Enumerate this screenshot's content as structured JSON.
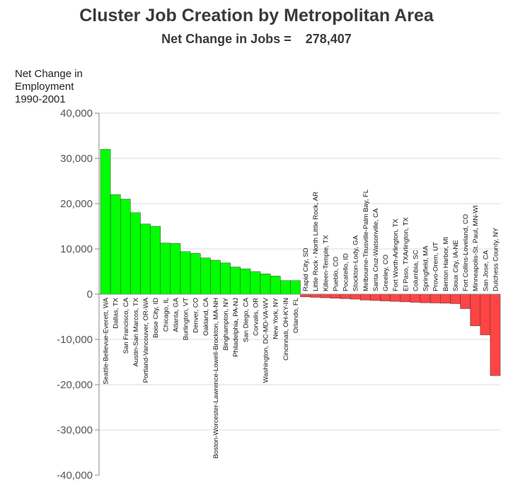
{
  "chart_data": {
    "type": "bar",
    "title": "Cluster Job Creation by Metropolitan Area",
    "subtitle_label": "Net Change in Jobs =",
    "subtitle_value": "278,407",
    "ylabel_lines": [
      "Net Change in",
      "Employment",
      "1990-2001"
    ],
    "xlabel": "",
    "ylim": [
      -40000,
      40000
    ],
    "yticks": [
      {
        "value": 40000,
        "label": "40,000"
      },
      {
        "value": 30000,
        "label": "30,000"
      },
      {
        "value": 20000,
        "label": "20,000"
      },
      {
        "value": 10000,
        "label": "10,000"
      },
      {
        "value": 0,
        "label": "0"
      },
      {
        "value": -10000,
        "label": "-10,000"
      },
      {
        "value": -20000,
        "label": "-20,000"
      },
      {
        "value": -30000,
        "label": "-30,000"
      },
      {
        "value": -40000,
        "label": "-40,000"
      }
    ],
    "grid": true,
    "positive_color": "#00ff00",
    "negative_color": "#ff4444",
    "categories": [
      "Seattle-Bellevue-Everett, WA",
      "Dallas, TX",
      "San Francisco, CA",
      "Austin-San Marcos, TX",
      "Portland-Vancouver, OR-WA",
      "Boise City, ID",
      "Chicago, IL",
      "Atlanta, GA",
      "Burlington, VT",
      "Denver, CO",
      "Oakland, CA",
      "Boston-Worcester-Lawrence-Lowell-Brockton, MA-NH",
      "Binghampton, NY",
      "Philadelphia, PA-NJ",
      "San Diego, CA",
      "Corvalis, OR",
      "Washington, DC-MD-VA-WV",
      "New York, NY",
      "Cincinnati, OH-KY-IN",
      "Orlando, FL",
      "Rapid City, SD",
      "Little Rock - North Little Rock, AR",
      "Killeen-Temple, TX",
      "Pueblo, CO",
      "Pocatello, ID",
      "Stockton-Lody, GA",
      "Melbourne-Titusville-Palm Bay, FL",
      "Santa Cruz-Watsonville, CA",
      "Greeley, CO",
      "Fort Worth-Arlington, TX",
      "El Paso, TXArlington, TX",
      "Columbia, SC",
      "Springfield, MA",
      "Provo-Orem, UT",
      "Benton Harbor, MI",
      "Sioux City, IA-NE",
      "Fort Collins-Loveland, CO",
      "Minneapolis-St. Paul, MN-WI",
      "San Jose, CA",
      "Dutchess County, NY"
    ],
    "values": [
      32000,
      22000,
      21000,
      18000,
      15500,
      15000,
      11300,
      11200,
      9400,
      9000,
      8000,
      7500,
      6900,
      6000,
      5600,
      5000,
      4500,
      4000,
      3000,
      3000,
      -600,
      -700,
      -800,
      -900,
      -1000,
      -1100,
      -1300,
      -1400,
      -1500,
      -1600,
      -1700,
      -1800,
      -1900,
      -1950,
      -2000,
      -2100,
      -3200,
      -7000,
      -9000,
      -18000
    ]
  }
}
